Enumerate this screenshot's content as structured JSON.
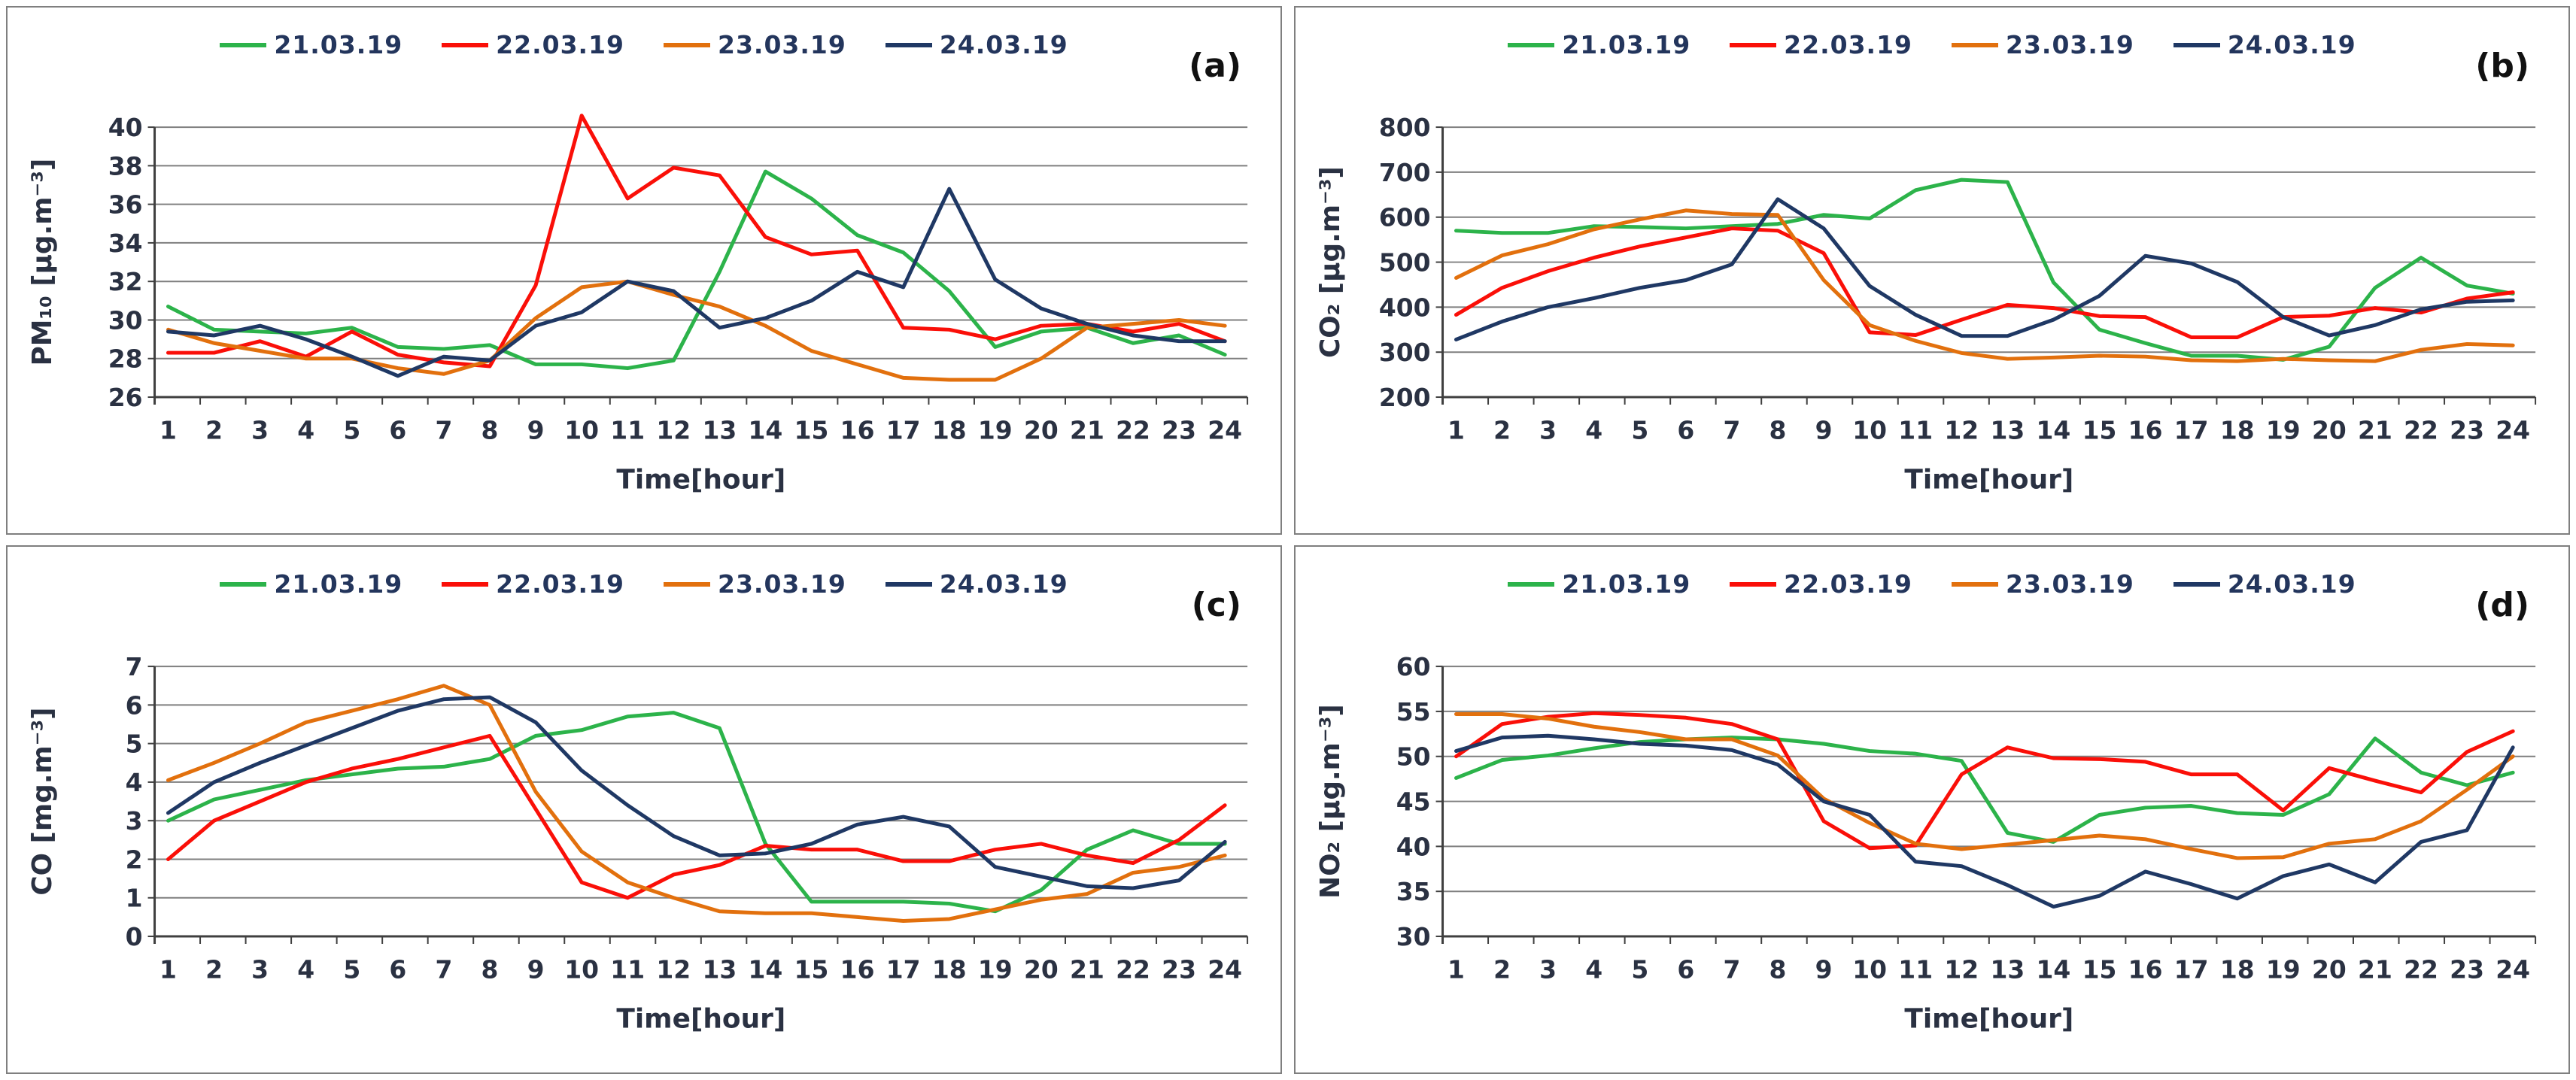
{
  "figure": {
    "x_axis_title": "Time[hour]",
    "legend_labels": [
      "21.03.19",
      "22.03.19",
      "23.03.19",
      "24.03.19"
    ],
    "text_color": "#2a3142",
    "gridline_color": "#7f7f7f",
    "axis_color": "#3f3f3f",
    "series_colors": [
      "#2cb34a",
      "#fa0f08",
      "#e2700d",
      "#1f3864"
    ]
  },
  "chart_data": [
    {
      "type": "line",
      "panel_label": "(a)",
      "ylabel": "PM₁₀ [µg.m⁻³]",
      "xlabel": "Time[hour]",
      "ylim": [
        26,
        40
      ],
      "ytick_step": 2,
      "grid": true,
      "legend_position": "top",
      "x": [
        1,
        2,
        3,
        4,
        5,
        6,
        7,
        8,
        9,
        10,
        11,
        12,
        13,
        14,
        15,
        16,
        17,
        18,
        19,
        20,
        21,
        22,
        23,
        24
      ],
      "series": [
        {
          "name": "21.03.19",
          "color": "#2cb34a",
          "values": [
            30.7,
            29.5,
            29.4,
            29.3,
            29.6,
            28.6,
            28.5,
            28.7,
            27.7,
            27.7,
            27.5,
            27.9,
            32.5,
            37.7,
            36.3,
            34.4,
            33.5,
            31.5,
            28.6,
            29.4,
            29.6,
            28.8,
            29.2,
            28.2
          ]
        },
        {
          "name": "22.03.19",
          "color": "#fa0f08",
          "values": [
            28.3,
            28.3,
            28.9,
            28.1,
            29.4,
            28.2,
            27.8,
            27.6,
            31.8,
            40.6,
            36.3,
            37.9,
            37.5,
            34.3,
            33.4,
            33.6,
            29.6,
            29.5,
            29.0,
            29.7,
            29.8,
            29.4,
            29.8,
            28.9
          ]
        },
        {
          "name": "23.03.19",
          "color": "#e2700d",
          "values": [
            29.5,
            28.8,
            28.4,
            28.0,
            28.0,
            27.5,
            27.2,
            27.9,
            30.1,
            31.7,
            32.0,
            31.3,
            30.7,
            29.7,
            28.4,
            27.7,
            27.0,
            26.9,
            26.9,
            28.0,
            29.6,
            29.8,
            30.0,
            29.7
          ]
        },
        {
          "name": "24.03.19",
          "color": "#1f3864",
          "values": [
            29.4,
            29.2,
            29.7,
            29.0,
            28.1,
            27.1,
            28.1,
            27.9,
            29.7,
            30.4,
            32.0,
            31.5,
            29.6,
            30.1,
            31.0,
            32.5,
            31.7,
            36.8,
            32.1,
            30.6,
            29.8,
            29.2,
            28.9,
            28.9
          ]
        }
      ]
    },
    {
      "type": "line",
      "panel_label": "(b)",
      "ylabel": "CO₂ [µg.m⁻³]",
      "xlabel": "Time[hour]",
      "ylim": [
        200,
        800
      ],
      "ytick_step": 100,
      "grid": true,
      "legend_position": "top",
      "x": [
        1,
        2,
        3,
        4,
        5,
        6,
        7,
        8,
        9,
        10,
        11,
        12,
        13,
        14,
        15,
        16,
        17,
        18,
        19,
        20,
        21,
        22,
        23,
        24
      ],
      "series": [
        {
          "name": "21.03.19",
          "color": "#2cb34a",
          "values": [
            570,
            565,
            565,
            580,
            578,
            575,
            580,
            585,
            605,
            597,
            660,
            683,
            678,
            455,
            350,
            320,
            292,
            292,
            283,
            312,
            443,
            510,
            448,
            430
          ]
        },
        {
          "name": "22.03.19",
          "color": "#fa0f08",
          "values": [
            383,
            443,
            480,
            510,
            535,
            555,
            575,
            570,
            520,
            344,
            338,
            372,
            405,
            398,
            380,
            378,
            333,
            333,
            378,
            381,
            398,
            388,
            419,
            433
          ]
        },
        {
          "name": "23.03.19",
          "color": "#e2700d",
          "values": [
            465,
            515,
            540,
            573,
            595,
            615,
            607,
            605,
            460,
            360,
            325,
            298,
            285,
            288,
            292,
            290,
            282,
            280,
            285,
            282,
            280,
            305,
            318,
            315
          ]
        },
        {
          "name": "24.03.19",
          "color": "#1f3864",
          "values": [
            328,
            368,
            400,
            420,
            443,
            460,
            495,
            640,
            575,
            447,
            383,
            336,
            336,
            372,
            425,
            514,
            497,
            456,
            378,
            337,
            360,
            395,
            412,
            415
          ]
        }
      ]
    },
    {
      "type": "line",
      "panel_label": "(c)",
      "ylabel": "CO [mg.m⁻³]",
      "xlabel": "Time[hour]",
      "ylim": [
        0,
        7
      ],
      "ytick_step": 1,
      "grid": true,
      "legend_position": "top",
      "x": [
        1,
        2,
        3,
        4,
        5,
        6,
        7,
        8,
        9,
        10,
        11,
        12,
        13,
        14,
        15,
        16,
        17,
        18,
        19,
        20,
        21,
        22,
        23,
        24
      ],
      "series": [
        {
          "name": "21.03.19",
          "color": "#2cb34a",
          "values": [
            3.0,
            3.55,
            3.8,
            4.05,
            4.2,
            4.35,
            4.4,
            4.6,
            5.2,
            5.35,
            5.7,
            5.8,
            5.4,
            2.4,
            0.9,
            0.9,
            0.9,
            0.85,
            0.65,
            1.2,
            2.25,
            2.75,
            2.4,
            2.4
          ]
        },
        {
          "name": "22.03.19",
          "color": "#fa0f08",
          "values": [
            2.0,
            3.0,
            3.5,
            4.0,
            4.35,
            4.6,
            4.9,
            5.2,
            3.3,
            1.4,
            1.0,
            1.6,
            1.85,
            2.35,
            2.25,
            2.25,
            1.95,
            1.95,
            2.25,
            2.4,
            2.1,
            1.9,
            2.5,
            3.4
          ]
        },
        {
          "name": "23.03.19",
          "color": "#e2700d",
          "values": [
            4.05,
            4.5,
            5.0,
            5.55,
            5.85,
            6.15,
            6.5,
            6.0,
            3.75,
            2.2,
            1.4,
            1.0,
            0.65,
            0.6,
            0.6,
            0.5,
            0.4,
            0.45,
            0.7,
            0.95,
            1.1,
            1.65,
            1.8,
            2.1
          ]
        },
        {
          "name": "24.03.19",
          "color": "#1f3864",
          "values": [
            3.2,
            4.0,
            4.5,
            4.95,
            5.4,
            5.85,
            6.15,
            6.2,
            5.55,
            4.3,
            3.4,
            2.6,
            2.1,
            2.15,
            2.4,
            2.9,
            3.1,
            2.85,
            1.8,
            1.55,
            1.3,
            1.25,
            1.45,
            2.45
          ]
        }
      ]
    },
    {
      "type": "line",
      "panel_label": "(d)",
      "ylabel": "NO₂ [µg.m⁻³]",
      "xlabel": "Time[hour]",
      "ylim": [
        30,
        60
      ],
      "ytick_step": 5,
      "grid": true,
      "legend_position": "top",
      "x": [
        1,
        2,
        3,
        4,
        5,
        6,
        7,
        8,
        9,
        10,
        11,
        12,
        13,
        14,
        15,
        16,
        17,
        18,
        19,
        20,
        21,
        22,
        23,
        24
      ],
      "series": [
        {
          "name": "21.03.19",
          "color": "#2cb34a",
          "values": [
            47.6,
            49.6,
            50.1,
            50.9,
            51.6,
            51.9,
            52.1,
            51.9,
            51.4,
            50.6,
            50.3,
            49.5,
            41.5,
            40.5,
            43.5,
            44.3,
            44.5,
            43.7,
            43.5,
            45.8,
            52.0,
            48.2,
            46.8,
            48.2
          ]
        },
        {
          "name": "22.03.19",
          "color": "#fa0f08",
          "values": [
            50.0,
            53.6,
            54.4,
            54.8,
            54.6,
            54.3,
            53.6,
            51.9,
            42.8,
            39.8,
            40.1,
            48.0,
            51.0,
            49.8,
            49.7,
            49.4,
            48.0,
            48.0,
            44.0,
            48.7,
            47.3,
            46.0,
            50.5,
            52.8
          ]
        },
        {
          "name": "23.03.19",
          "color": "#e2700d",
          "values": [
            54.7,
            54.7,
            54.2,
            53.3,
            52.7,
            51.9,
            51.9,
            50.1,
            45.3,
            42.6,
            40.3,
            39.7,
            40.2,
            40.7,
            41.2,
            40.8,
            39.7,
            38.7,
            38.8,
            40.3,
            40.8,
            42.8,
            46.3,
            50.0
          ]
        },
        {
          "name": "24.03.19",
          "color": "#1f3864",
          "values": [
            50.6,
            52.1,
            52.3,
            51.9,
            51.4,
            51.2,
            50.7,
            49.1,
            45.0,
            43.5,
            38.3,
            37.8,
            35.7,
            33.3,
            34.5,
            37.2,
            35.8,
            34.2,
            36.7,
            38.0,
            36.0,
            40.5,
            41.8,
            51.0
          ]
        }
      ]
    }
  ]
}
